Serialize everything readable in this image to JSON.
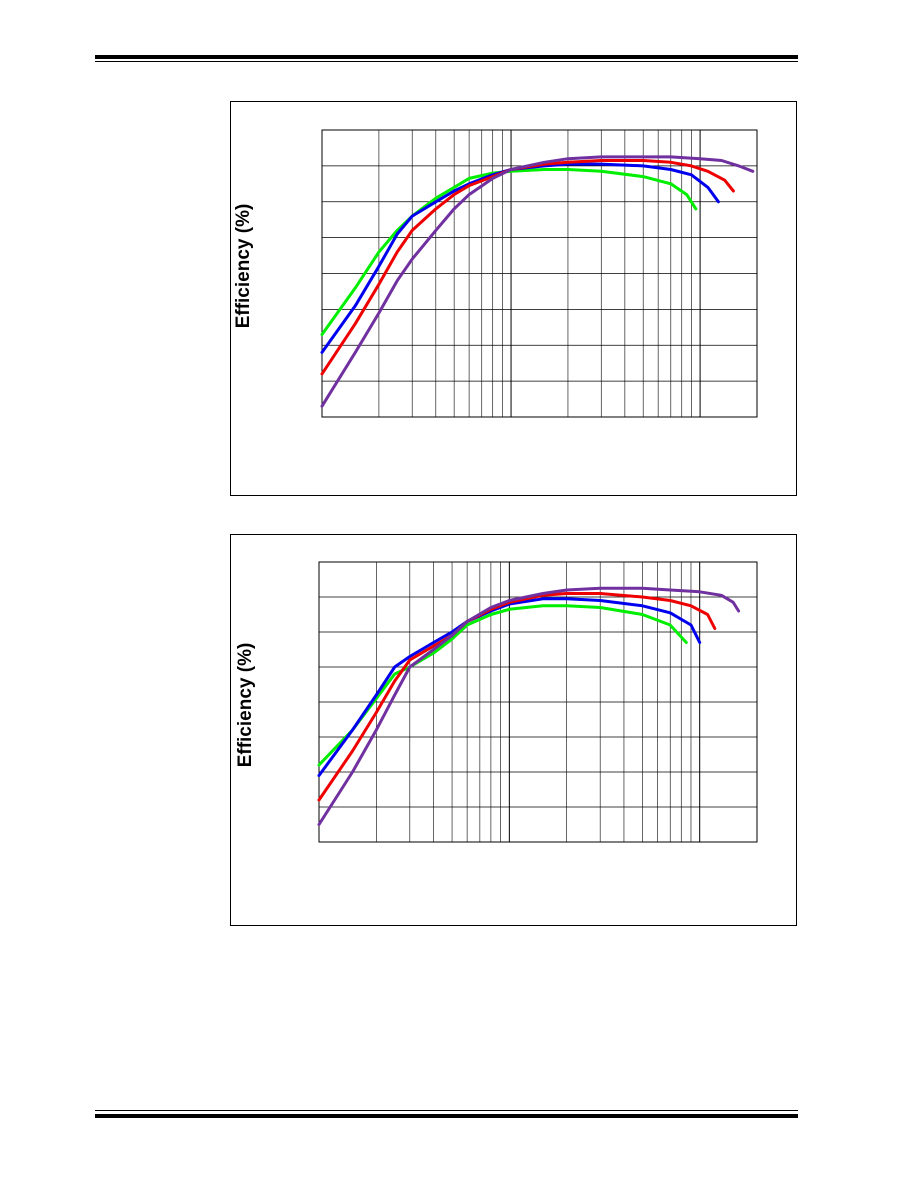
{
  "page": {
    "header_rule": true,
    "footer_rule": true
  },
  "chart_data": [
    {
      "type": "line",
      "title": "",
      "xlabel": "",
      "ylabel": "Efficiency (%)",
      "x_scale": "log",
      "xlim": [
        0.01,
        2
      ],
      "ylim": [
        20,
        100
      ],
      "grid": true,
      "series": [
        {
          "name": "",
          "color": "#00ee00",
          "x": [
            0.01,
            0.015,
            0.02,
            0.025,
            0.03,
            0.04,
            0.05,
            0.06,
            0.08,
            0.1,
            0.15,
            0.2,
            0.3,
            0.5,
            0.7,
            0.85,
            0.95
          ],
          "y": [
            43,
            56,
            66,
            72,
            76,
            81,
            84,
            86.5,
            88,
            88.5,
            89,
            89,
            88.5,
            87,
            85,
            82,
            78
          ]
        },
        {
          "name": "",
          "color": "#0000ee",
          "x": [
            0.01,
            0.015,
            0.02,
            0.025,
            0.03,
            0.04,
            0.05,
            0.06,
            0.08,
            0.1,
            0.15,
            0.2,
            0.3,
            0.5,
            0.7,
            0.9,
            1.1,
            1.25
          ],
          "y": [
            38,
            51,
            62,
            71,
            76,
            80,
            83,
            85,
            87.5,
            89,
            90,
            90.5,
            90.5,
            90,
            89,
            87.5,
            84,
            80
          ]
        },
        {
          "name": "",
          "color": "#ee0000",
          "x": [
            0.01,
            0.015,
            0.02,
            0.025,
            0.03,
            0.04,
            0.05,
            0.06,
            0.08,
            0.1,
            0.15,
            0.2,
            0.3,
            0.5,
            0.7,
            0.9,
            1.1,
            1.35,
            1.5
          ],
          "y": [
            32,
            46,
            57,
            66,
            72,
            78,
            82,
            84.5,
            87,
            89,
            90.5,
            91,
            91.5,
            91.5,
            91,
            90,
            88.5,
            86,
            83
          ]
        },
        {
          "name": "",
          "color": "#7030a0",
          "x": [
            0.01,
            0.015,
            0.02,
            0.025,
            0.03,
            0.04,
            0.05,
            0.06,
            0.08,
            0.1,
            0.15,
            0.2,
            0.3,
            0.5,
            0.7,
            1.0,
            1.3,
            1.6,
            1.9
          ],
          "y": [
            23,
            38,
            49,
            58,
            64,
            72,
            78,
            82,
            86.5,
            89,
            91,
            92,
            92.5,
            92.5,
            92.5,
            92,
            91.5,
            90,
            88.5
          ]
        }
      ]
    },
    {
      "type": "line",
      "title": "",
      "xlabel": "",
      "ylabel": "Efficiency (%)",
      "x_scale": "log",
      "xlim": [
        0.01,
        2
      ],
      "ylim": [
        20,
        100
      ],
      "grid": true,
      "series": [
        {
          "name": "",
          "color": "#00ee00",
          "x": [
            0.01,
            0.015,
            0.02,
            0.025,
            0.03,
            0.04,
            0.05,
            0.06,
            0.08,
            0.1,
            0.15,
            0.2,
            0.3,
            0.5,
            0.7,
            0.85
          ],
          "y": [
            42,
            52,
            61,
            68,
            70,
            74,
            78,
            82,
            85,
            86.5,
            87.5,
            87.5,
            87,
            85,
            82,
            77
          ]
        },
        {
          "name": "",
          "color": "#0000ee",
          "x": [
            0.01,
            0.015,
            0.02,
            0.025,
            0.03,
            0.04,
            0.05,
            0.06,
            0.08,
            0.1,
            0.15,
            0.2,
            0.3,
            0.5,
            0.7,
            0.9,
            1.0
          ],
          "y": [
            39,
            52,
            62,
            70,
            73,
            77,
            80,
            83,
            86,
            88,
            89.5,
            89.5,
            89,
            87.5,
            85.5,
            82,
            77
          ]
        },
        {
          "name": "",
          "color": "#ee0000",
          "x": [
            0.01,
            0.015,
            0.02,
            0.025,
            0.03,
            0.04,
            0.05,
            0.06,
            0.08,
            0.1,
            0.15,
            0.2,
            0.3,
            0.5,
            0.7,
            0.9,
            1.1,
            1.2
          ],
          "y": [
            32,
            46,
            57,
            66,
            72,
            76,
            79,
            83,
            86.5,
            88.5,
            90.5,
            91,
            91,
            90,
            89,
            87.5,
            85,
            81
          ]
        },
        {
          "name": "",
          "color": "#7030a0",
          "x": [
            0.01,
            0.015,
            0.02,
            0.025,
            0.03,
            0.04,
            0.05,
            0.06,
            0.08,
            0.1,
            0.15,
            0.2,
            0.3,
            0.5,
            0.7,
            1.0,
            1.3,
            1.5,
            1.6
          ],
          "y": [
            25,
            40,
            52,
            62,
            70,
            75,
            79,
            83,
            87,
            89,
            91,
            92,
            92.5,
            92.5,
            92,
            91.5,
            90.5,
            88.5,
            86
          ]
        }
      ]
    }
  ]
}
